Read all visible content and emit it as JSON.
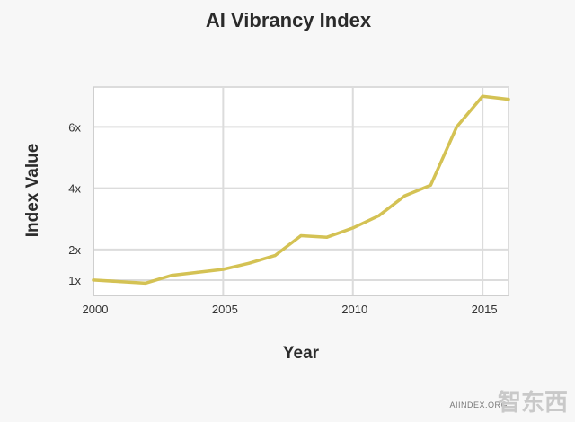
{
  "chart_data": {
    "type": "line",
    "title": "AI Vibrancy Index",
    "xlabel": "Year",
    "ylabel": "Index Value",
    "xlim": [
      2000,
      2016
    ],
    "ylim": [
      0.5,
      7.3
    ],
    "x_ticks": [
      2000,
      2005,
      2010,
      2015
    ],
    "x_tick_labels": [
      "2000",
      "2005",
      "2010",
      "2015"
    ],
    "y_ticks": [
      1,
      2,
      4,
      6
    ],
    "y_tick_labels": [
      "1x",
      "2x",
      "4x",
      "6x"
    ],
    "grid": true,
    "series": [
      {
        "color": "#d4c254",
        "x": [
          2000,
          2001,
          2002,
          2003,
          2004,
          2005,
          2006,
          2007,
          2008,
          2009,
          2010,
          2011,
          2012,
          2013,
          2014,
          2015,
          2016
        ],
        "y": [
          1.0,
          0.95,
          0.9,
          1.15,
          1.25,
          1.35,
          1.55,
          1.8,
          2.45,
          2.4,
          2.7,
          3.1,
          3.75,
          4.1,
          6.0,
          7.0,
          6.9
        ]
      }
    ]
  },
  "watermark": {
    "text": "AIINDEX.ORG",
    "logo_text": "智东西"
  }
}
